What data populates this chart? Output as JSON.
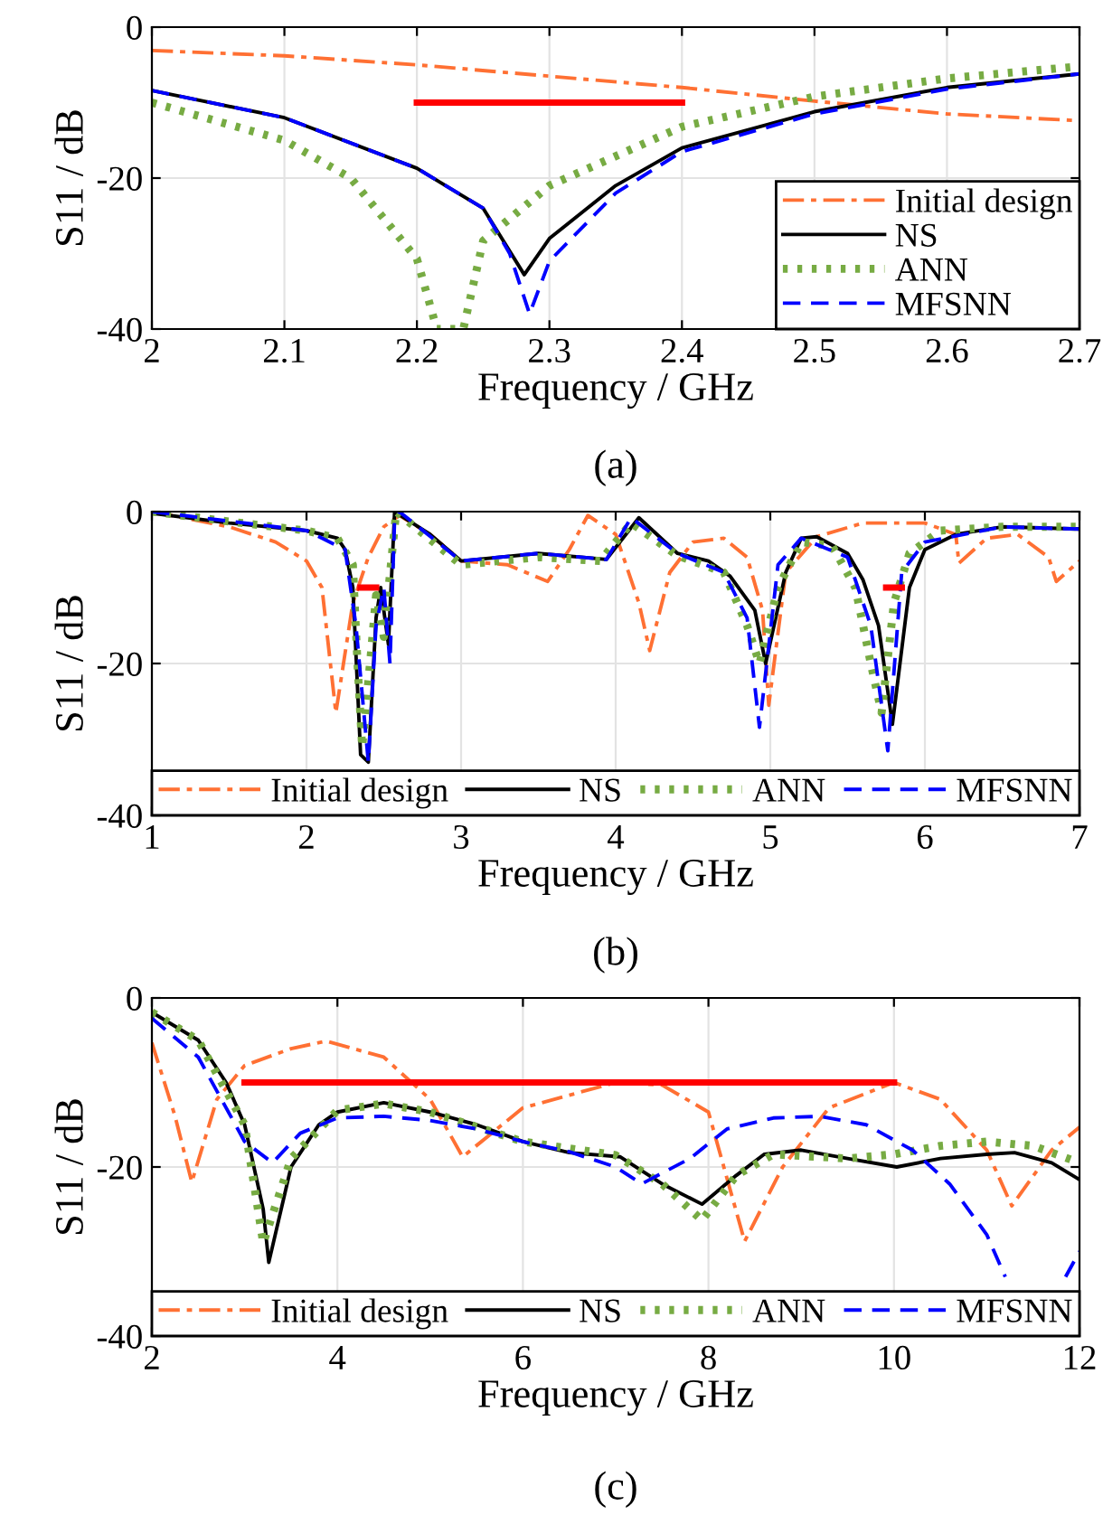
{
  "chart_data": [
    {
      "type": "line",
      "title": "(a)",
      "xlabel": "Frequency / GHz",
      "ylabel": "S11 / dB",
      "xlim": [
        2,
        2.7
      ],
      "xticks": [
        2,
        2.1,
        2.2,
        2.3,
        2.4,
        2.5,
        2.6,
        2.7
      ],
      "ylim": [
        -40,
        0
      ],
      "yticks": [
        -40,
        -20,
        0
      ],
      "grid": true,
      "legend": "bottom right",
      "series": [
        {
          "name": "Initial design",
          "color": "#ff7033",
          "line_style": "dashdot",
          "x": [
            2.0,
            2.1,
            2.2,
            2.3,
            2.4,
            2.5,
            2.6,
            2.7
          ],
          "values": [
            -3.1,
            -3.8,
            -5,
            -6.5,
            -8,
            -9.8,
            -11.5,
            -12.4
          ]
        },
        {
          "name": "NS",
          "color": "#000000",
          "line_style": "solid",
          "x": [
            2.0,
            2.1,
            2.2,
            2.25,
            2.281,
            2.3,
            2.35,
            2.4,
            2.5,
            2.6,
            2.7
          ],
          "values": [
            -8.4,
            -12,
            -18.7,
            -24,
            -32.8,
            -28,
            -21,
            -16,
            -11.2,
            -8,
            -6.2
          ]
        },
        {
          "name": "ANN",
          "color": "#77ab43",
          "line_style": "dotted",
          "x": [
            2.0,
            2.1,
            2.15,
            2.2,
            2.215,
            2.235,
            2.25,
            2.3,
            2.4,
            2.5,
            2.6,
            2.7
          ],
          "values": [
            -10,
            -15,
            -20,
            -30.7,
            -40,
            -40,
            -28.3,
            -21,
            -13.2,
            -9.2,
            -6.8,
            -5.2
          ]
        },
        {
          "name": "MFSNN",
          "color": "#0000ff",
          "line_style": "dashed",
          "x": [
            2.0,
            2.1,
            2.2,
            2.25,
            2.27,
            2.285,
            2.3,
            2.35,
            2.4,
            2.5,
            2.6,
            2.7
          ],
          "values": [
            -8.4,
            -12,
            -18.7,
            -24,
            -30,
            -38,
            -31,
            -22,
            -16.5,
            -11.5,
            -8.2,
            -6.2
          ]
        },
        {
          "color": "#ff0000",
          "line_style": "solid",
          "x": [
            2.2,
            2.4
          ],
          "values": [
            -10,
            -10
          ]
        }
      ]
    },
    {
      "type": "line",
      "title": "(b)",
      "xlabel": "Frequency / GHz",
      "ylabel": "S11 / dB",
      "xlim": [
        1,
        7
      ],
      "xticks": [
        1,
        2,
        3,
        4,
        5,
        6,
        7
      ],
      "ylim": [
        -40,
        0
      ],
      "yticks": [
        -40,
        -20,
        0
      ],
      "grid": true,
      "legend": "bottom",
      "series": [
        {
          "name": "Initial design",
          "color": "#ff7033",
          "line_style": "dashdot",
          "x": [
            1.0,
            1.5,
            1.8,
            2.0,
            2.1,
            2.19,
            2.3,
            2.4,
            2.5,
            2.6,
            2.8,
            3.0,
            3.3,
            3.56,
            3.7,
            3.82,
            4.0,
            4.15,
            4.22,
            4.35,
            4.5,
            4.7,
            4.85,
            4.95,
            4.99,
            5.1,
            5.3,
            5.6,
            6.0,
            6.2,
            6.22,
            6.4,
            6.6,
            6.8,
            6.85,
            7.0
          ],
          "values": [
            0,
            -2,
            -4,
            -6.5,
            -10,
            -26.5,
            -12,
            -6,
            -2,
            -0.5,
            -3,
            -6.5,
            -7,
            -9.2,
            -5,
            -0.5,
            -3,
            -12,
            -18.3,
            -8,
            -4,
            -3.5,
            -6,
            -13,
            -25.5,
            -8,
            -3.3,
            -1.5,
            -1.5,
            -3,
            -6.8,
            -3.5,
            -3,
            -6,
            -9.2,
            -6.5
          ]
        },
        {
          "name": "NS",
          "color": "#000000",
          "line_style": "solid",
          "x": [
            1.0,
            1.5,
            2.0,
            2.2,
            2.25,
            2.3,
            2.35,
            2.4,
            2.45,
            2.48,
            2.53,
            2.57,
            2.8,
            3.0,
            3.5,
            3.94,
            4.15,
            4.4,
            4.6,
            4.74,
            4.9,
            4.97,
            5.1,
            5.2,
            5.3,
            5.5,
            5.6,
            5.7,
            5.79,
            5.9,
            6.0,
            6.2,
            6.5,
            7.0
          ],
          "values": [
            -0.2,
            -1.5,
            -2.5,
            -3.5,
            -5,
            -10,
            -32,
            -33,
            -14,
            -10,
            -17.5,
            0,
            -3,
            -6.5,
            -5.5,
            -6.3,
            -0.8,
            -5.5,
            -6.5,
            -8.5,
            -13,
            -20,
            -8,
            -3.5,
            -3.3,
            -5.5,
            -9,
            -15,
            -28,
            -10,
            -5,
            -3,
            -2,
            -2.3
          ]
        },
        {
          "name": "ANN",
          "color": "#77ab43",
          "line_style": "dotted",
          "x": [
            1.0,
            1.5,
            2.0,
            2.2,
            2.3,
            2.33,
            2.36,
            2.42,
            2.45,
            2.5,
            2.58,
            3.0,
            3.5,
            3.9,
            4.1,
            4.4,
            4.7,
            4.85,
            4.93,
            5.05,
            5.2,
            5.4,
            5.55,
            5.65,
            5.72,
            5.8,
            5.9,
            6.1,
            6.5,
            7.0
          ],
          "values": [
            0,
            -1.3,
            -2.5,
            -3.5,
            -7,
            -20,
            -31,
            -18,
            -11,
            -16.5,
            0,
            -7,
            -6,
            -6.5,
            -1.5,
            -5.8,
            -8,
            -15,
            -20,
            -10,
            -4,
            -4.5,
            -10,
            -20,
            -26.5,
            -12,
            -5.5,
            -2.5,
            -2,
            -2
          ]
        },
        {
          "name": "MFSNN",
          "color": "#0000ff",
          "line_style": "dashed",
          "x": [
            1.0,
            2.0,
            2.25,
            2.32,
            2.4,
            2.45,
            2.5,
            2.54,
            2.57,
            2.6,
            3.0,
            3.5,
            3.94,
            4.1,
            4.4,
            4.7,
            4.85,
            4.93,
            5.05,
            5.2,
            5.5,
            5.65,
            5.76,
            5.85,
            6.0,
            6.5,
            7.0
          ],
          "values": [
            0,
            -2.5,
            -5,
            -15,
            -33,
            -15,
            -10,
            -20,
            -1,
            0,
            -6.5,
            -5.5,
            -6.3,
            -0.8,
            -5.5,
            -8,
            -14,
            -28.4,
            -7,
            -3.5,
            -6,
            -15,
            -31.5,
            -8,
            -4,
            -2,
            -2.3
          ]
        },
        {
          "color": "#ff0000",
          "line_style": "solid",
          "x": [
            2.35,
            2.45,
            4.0,
            5.75,
            5.85
          ],
          "values": [
            -10,
            -10,
            null,
            -10,
            -10
          ]
        }
      ]
    },
    {
      "type": "line",
      "title": "(c)",
      "xlabel": "Frequency / GHz",
      "ylabel": "S11 / dB",
      "xlim": [
        2,
        12
      ],
      "xticks": [
        2,
        4,
        6,
        8,
        10,
        12
      ],
      "ylim": [
        -40,
        0
      ],
      "yticks": [
        -40,
        -20,
        0
      ],
      "grid": true,
      "legend": "bottom",
      "series": [
        {
          "name": "Initial design",
          "color": "#ff7033",
          "line_style": "dashdot",
          "x": [
            2.0,
            2.25,
            2.43,
            2.7,
            3.0,
            3.5,
            3.88,
            4.5,
            5.0,
            5.35,
            6.0,
            7.0,
            7.5,
            8.0,
            8.39,
            8.8,
            9.3,
            10.0,
            10.5,
            11.0,
            11.27,
            11.7,
            12.0
          ],
          "values": [
            -5.3,
            -14,
            -21.8,
            -12,
            -8,
            -6,
            -5.1,
            -7,
            -12,
            -18.8,
            -13,
            -10,
            -10.3,
            -13.5,
            -28.8,
            -20,
            -13,
            -10,
            -12,
            -18,
            -24.6,
            -18,
            -15.3
          ]
        },
        {
          "name": "NS",
          "color": "#000000",
          "line_style": "solid",
          "x": [
            2.0,
            2.5,
            2.8,
            3.0,
            3.2,
            3.26,
            3.5,
            3.8,
            4.0,
            4.5,
            5.0,
            5.5,
            6.0,
            6.5,
            7.05,
            7.5,
            7.93,
            8.3,
            8.6,
            9.0,
            9.5,
            10.03,
            10.5,
            11.0,
            11.3,
            11.7,
            12.0
          ],
          "values": [
            -1.7,
            -5,
            -10,
            -15,
            -25,
            -31.3,
            -20,
            -15,
            -13.5,
            -12.4,
            -13.5,
            -15,
            -17,
            -18.3,
            -18.8,
            -22,
            -24.4,
            -21,
            -18.5,
            -18,
            -19,
            -20,
            -19,
            -18.5,
            -18.3,
            -19.5,
            -21.5
          ]
        },
        {
          "name": "ANN",
          "color": "#77ab43",
          "line_style": "dotted",
          "x": [
            2.0,
            2.5,
            3.0,
            3.2,
            3.5,
            4.0,
            4.5,
            5.0,
            6.0,
            7.0,
            7.5,
            7.93,
            8.3,
            8.7,
            9.5,
            10.0,
            10.5,
            11.0,
            11.5,
            12.0
          ],
          "values": [
            -1.7,
            -5,
            -15,
            -29,
            -19,
            -13.3,
            -12.5,
            -13.5,
            -17,
            -18.6,
            -22,
            -26.3,
            -21,
            -18.5,
            -19,
            -18.5,
            -17.5,
            -17,
            -17.5,
            -19.5
          ]
        },
        {
          "name": "MFSNN",
          "color": "#0000ff",
          "line_style": "dashed",
          "x": [
            2.0,
            2.5,
            3.0,
            3.3,
            3.6,
            4.0,
            4.5,
            5.0,
            5.5,
            6.0,
            6.5,
            7.0,
            7.28,
            7.8,
            8.2,
            8.7,
            9.2,
            9.7,
            10.2,
            10.6,
            11.0,
            11.2,
            11.5,
            11.85,
            12.0
          ],
          "values": [
            -2.4,
            -7,
            -17,
            -19.5,
            -16,
            -14.2,
            -14,
            -14.5,
            -15.5,
            -17,
            -18.2,
            -20,
            -22,
            -19,
            -15.5,
            -14.2,
            -14,
            -15,
            -18,
            -22,
            -28,
            -33,
            null,
            -33,
            -30
          ]
        },
        {
          "color": "#ff0000",
          "line_style": "solid",
          "x": [
            3,
            10
          ],
          "values": [
            -10,
            -10
          ]
        }
      ]
    }
  ]
}
